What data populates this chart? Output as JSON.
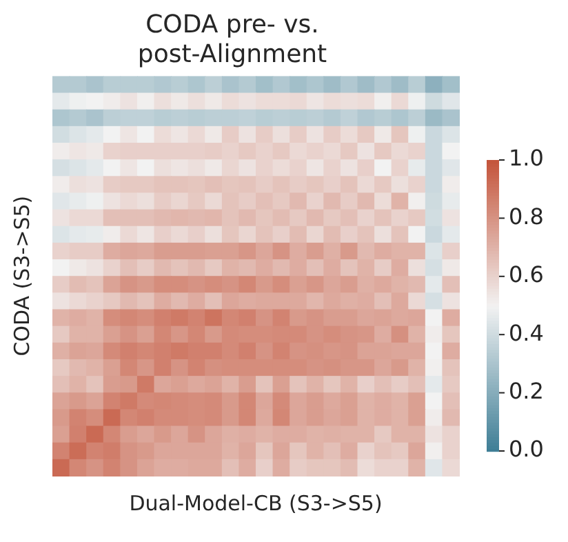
{
  "chart_data": {
    "type": "heatmap",
    "title": "CODA pre- vs.\npost-Alignment",
    "xlabel": "Dual-Model-CB (S3->S5)",
    "ylabel": "CODA (S3->S5)",
    "categories": [
      null,
      null,
      null,
      null,
      null,
      null,
      null,
      null,
      null,
      null,
      null,
      null,
      null,
      null,
      null,
      null,
      null,
      null,
      null,
      null,
      null,
      null,
      null,
      null
    ],
    "y_categories": [
      null,
      null,
      null,
      null,
      null,
      null,
      null,
      null,
      null,
      null,
      null,
      null,
      null,
      null,
      null,
      null,
      null,
      null,
      null,
      null,
      null,
      null,
      null,
      null
    ],
    "clim": [
      0,
      1
    ],
    "cticks": [
      {
        "value": 0,
        "label": "0.0"
      },
      {
        "value": 0.2,
        "label": "0.2"
      },
      {
        "value": 0.4,
        "label": "0.4"
      },
      {
        "value": 0.6,
        "label": "0.6"
      },
      {
        "value": 0.8,
        "label": "0.8"
      },
      {
        "value": 1,
        "label": "1.0"
      }
    ],
    "cells": [
      [
        0.33,
        0.33,
        0.3,
        0.34,
        0.34,
        0.34,
        0.32,
        0.34,
        0.31,
        0.35,
        0.3,
        0.33,
        0.28,
        0.32,
        0.28,
        0.31,
        0.27,
        0.32,
        0.27,
        0.32,
        0.27,
        0.34,
        0.22,
        0.28
      ],
      [
        0.46,
        0.49,
        0.5,
        0.52,
        0.55,
        0.51,
        0.56,
        0.53,
        0.56,
        0.53,
        0.57,
        0.55,
        0.57,
        0.57,
        0.58,
        0.54,
        0.57,
        0.56,
        0.57,
        0.51,
        0.58,
        0.49,
        0.4,
        0.45
      ],
      [
        0.31,
        0.33,
        0.3,
        0.35,
        0.36,
        0.36,
        0.34,
        0.35,
        0.34,
        0.35,
        0.35,
        0.36,
        0.34,
        0.35,
        0.34,
        0.35,
        0.33,
        0.36,
        0.32,
        0.34,
        0.31,
        0.35,
        0.26,
        0.3
      ],
      [
        0.41,
        0.44,
        0.46,
        0.5,
        0.54,
        0.5,
        0.57,
        0.54,
        0.58,
        0.53,
        0.62,
        0.55,
        0.62,
        0.56,
        0.62,
        0.55,
        0.62,
        0.57,
        0.63,
        0.53,
        0.64,
        0.49,
        0.39,
        0.44
      ],
      [
        0.52,
        0.54,
        0.53,
        0.6,
        0.61,
        0.61,
        0.61,
        0.61,
        0.61,
        0.62,
        0.6,
        0.63,
        0.6,
        0.63,
        0.58,
        0.6,
        0.58,
        0.63,
        0.55,
        0.63,
        0.58,
        0.6,
        0.39,
        0.5
      ],
      [
        0.42,
        0.44,
        0.46,
        0.5,
        0.54,
        0.5,
        0.56,
        0.54,
        0.56,
        0.53,
        0.59,
        0.55,
        0.6,
        0.57,
        0.6,
        0.54,
        0.6,
        0.55,
        0.61,
        0.5,
        0.6,
        0.47,
        0.39,
        0.45
      ],
      [
        0.52,
        0.56,
        0.55,
        0.62,
        0.63,
        0.63,
        0.65,
        0.65,
        0.64,
        0.66,
        0.64,
        0.65,
        0.62,
        0.65,
        0.62,
        0.64,
        0.61,
        0.65,
        0.58,
        0.63,
        0.56,
        0.6,
        0.39,
        0.52
      ],
      [
        0.45,
        0.47,
        0.49,
        0.55,
        0.58,
        0.56,
        0.62,
        0.59,
        0.63,
        0.58,
        0.65,
        0.62,
        0.66,
        0.63,
        0.68,
        0.6,
        0.68,
        0.62,
        0.68,
        0.57,
        0.7,
        0.51,
        0.4,
        0.47
      ],
      [
        0.55,
        0.58,
        0.58,
        0.66,
        0.66,
        0.66,
        0.68,
        0.69,
        0.68,
        0.69,
        0.65,
        0.68,
        0.64,
        0.67,
        0.63,
        0.68,
        0.63,
        0.66,
        0.6,
        0.65,
        0.6,
        0.63,
        0.41,
        0.55
      ],
      [
        0.44,
        0.46,
        0.47,
        0.52,
        0.58,
        0.54,
        0.61,
        0.58,
        0.61,
        0.56,
        0.64,
        0.59,
        0.65,
        0.61,
        0.67,
        0.59,
        0.67,
        0.61,
        0.65,
        0.56,
        0.65,
        0.5,
        0.39,
        0.46
      ],
      [
        0.6,
        0.62,
        0.62,
        0.72,
        0.74,
        0.73,
        0.77,
        0.77,
        0.77,
        0.76,
        0.76,
        0.79,
        0.74,
        0.8,
        0.72,
        0.77,
        0.71,
        0.78,
        0.68,
        0.72,
        0.7,
        0.7,
        0.44,
        0.61
      ],
      [
        0.5,
        0.53,
        0.55,
        0.6,
        0.66,
        0.62,
        0.68,
        0.65,
        0.68,
        0.63,
        0.7,
        0.68,
        0.72,
        0.68,
        0.72,
        0.66,
        0.72,
        0.65,
        0.7,
        0.62,
        0.72,
        0.56,
        0.42,
        0.53
      ],
      [
        0.62,
        0.67,
        0.65,
        0.75,
        0.8,
        0.78,
        0.82,
        0.82,
        0.8,
        0.82,
        0.8,
        0.84,
        0.78,
        0.82,
        0.76,
        0.79,
        0.74,
        0.77,
        0.71,
        0.73,
        0.7,
        0.68,
        0.46,
        0.66
      ],
      [
        0.55,
        0.58,
        0.6,
        0.63,
        0.68,
        0.65,
        0.72,
        0.68,
        0.72,
        0.66,
        0.74,
        0.72,
        0.73,
        0.73,
        0.73,
        0.69,
        0.73,
        0.71,
        0.72,
        0.66,
        0.73,
        0.58,
        0.42,
        0.55
      ],
      [
        0.7,
        0.72,
        0.7,
        0.82,
        0.84,
        0.82,
        0.86,
        0.88,
        0.85,
        0.9,
        0.84,
        0.86,
        0.8,
        0.85,
        0.78,
        0.8,
        0.77,
        0.77,
        0.74,
        0.75,
        0.73,
        0.74,
        0.5,
        0.72
      ],
      [
        0.63,
        0.7,
        0.7,
        0.76,
        0.8,
        0.76,
        0.84,
        0.79,
        0.84,
        0.78,
        0.83,
        0.82,
        0.82,
        0.83,
        0.83,
        0.8,
        0.82,
        0.8,
        0.79,
        0.72,
        0.81,
        0.7,
        0.52,
        0.64
      ],
      [
        0.71,
        0.75,
        0.74,
        0.83,
        0.86,
        0.84,
        0.86,
        0.88,
        0.86,
        0.86,
        0.83,
        0.86,
        0.8,
        0.85,
        0.8,
        0.81,
        0.79,
        0.8,
        0.75,
        0.75,
        0.74,
        0.74,
        0.5,
        0.72
      ],
      [
        0.63,
        0.68,
        0.7,
        0.76,
        0.84,
        0.79,
        0.86,
        0.8,
        0.85,
        0.81,
        0.82,
        0.82,
        0.82,
        0.82,
        0.82,
        0.8,
        0.81,
        0.79,
        0.79,
        0.74,
        0.78,
        0.7,
        0.51,
        0.65
      ],
      [
        0.66,
        0.7,
        0.65,
        0.77,
        0.78,
        0.88,
        0.74,
        0.76,
        0.73,
        0.75,
        0.7,
        0.77,
        0.65,
        0.76,
        0.65,
        0.7,
        0.64,
        0.7,
        0.61,
        0.66,
        0.62,
        0.66,
        0.46,
        0.63
      ],
      [
        0.75,
        0.78,
        0.75,
        0.85,
        0.88,
        0.83,
        0.84,
        0.83,
        0.82,
        0.83,
        0.78,
        0.84,
        0.74,
        0.83,
        0.74,
        0.77,
        0.73,
        0.76,
        0.7,
        0.72,
        0.7,
        0.76,
        0.5,
        0.66
      ],
      [
        0.78,
        0.85,
        0.82,
        0.93,
        0.84,
        0.86,
        0.83,
        0.83,
        0.82,
        0.83,
        0.78,
        0.84,
        0.73,
        0.84,
        0.74,
        0.77,
        0.74,
        0.76,
        0.7,
        0.72,
        0.7,
        0.76,
        0.52,
        0.68
      ],
      [
        0.76,
        0.86,
        0.93,
        0.84,
        0.77,
        0.74,
        0.78,
        0.74,
        0.8,
        0.74,
        0.71,
        0.72,
        0.7,
        0.72,
        0.72,
        0.7,
        0.71,
        0.7,
        0.7,
        0.63,
        0.7,
        0.7,
        0.55,
        0.6
      ],
      [
        0.85,
        0.92,
        0.85,
        0.87,
        0.8,
        0.78,
        0.74,
        0.74,
        0.74,
        0.74,
        0.7,
        0.74,
        0.64,
        0.74,
        0.64,
        0.7,
        0.66,
        0.72,
        0.6,
        0.65,
        0.63,
        0.74,
        0.51,
        0.6
      ],
      [
        0.93,
        0.84,
        0.8,
        0.85,
        0.8,
        0.75,
        0.72,
        0.72,
        0.73,
        0.73,
        0.66,
        0.72,
        0.61,
        0.72,
        0.62,
        0.64,
        0.64,
        0.67,
        0.57,
        0.6,
        0.6,
        0.7,
        0.45,
        0.58
      ]
    ]
  }
}
